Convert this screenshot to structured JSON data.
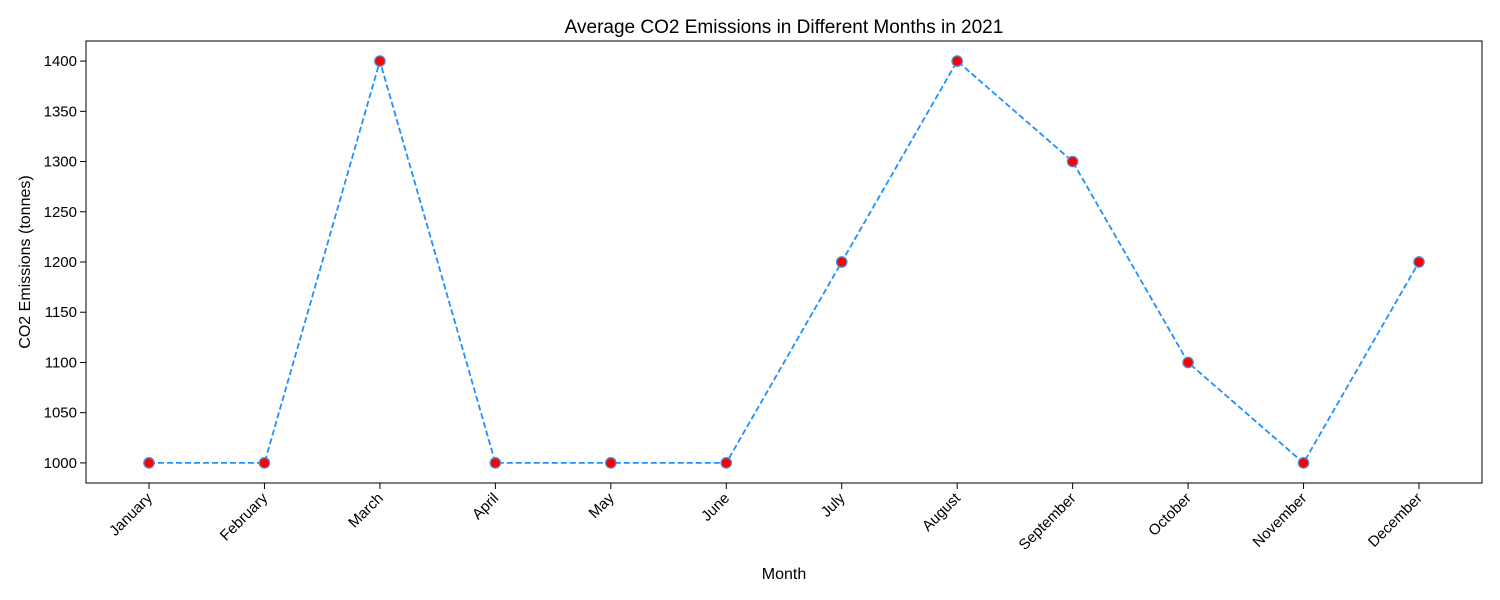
{
  "chart_data": {
    "type": "line",
    "title": "Average CO2 Emissions in Different Months in 2021",
    "xlabel": "Month",
    "ylabel": "CO2 Emissions (tonnes)",
    "categories": [
      "January",
      "February",
      "March",
      "April",
      "May",
      "June",
      "July",
      "August",
      "September",
      "October",
      "November",
      "December"
    ],
    "values": [
      1000,
      1000,
      1400,
      1000,
      1000,
      1000,
      1200,
      1400,
      1300,
      1100,
      1000,
      1200
    ],
    "ylim": [
      980,
      1420
    ],
    "yticks": [
      1000,
      1050,
      1100,
      1150,
      1200,
      1250,
      1300,
      1350,
      1400
    ],
    "grid": false,
    "line_style": "dashed",
    "line_color": "#1e90ff",
    "marker_fill": "#ff0000",
    "marker_edge": "#4a90d9"
  }
}
